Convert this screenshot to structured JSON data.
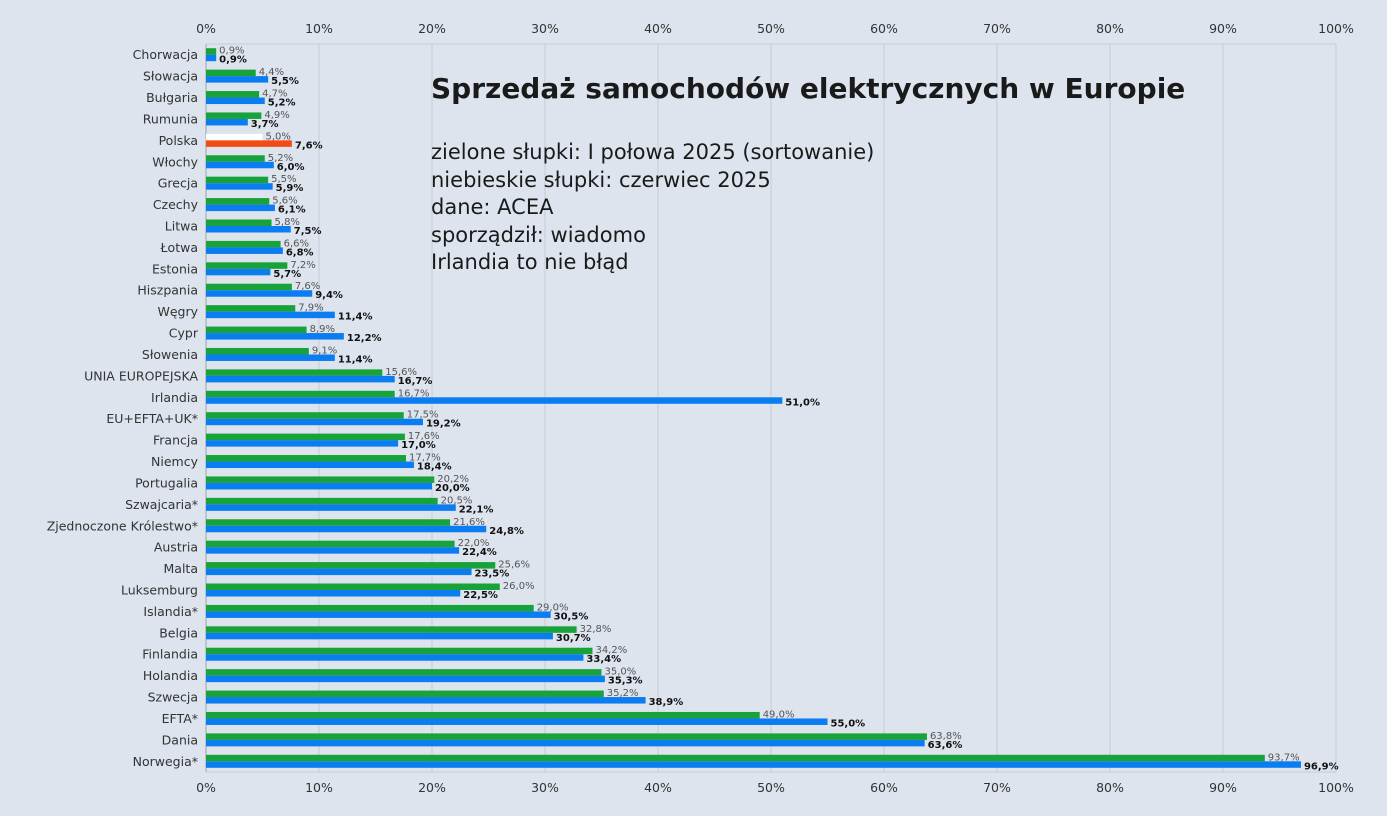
{
  "chart_data": {
    "type": "bar",
    "orientation": "horizontal",
    "title": "Sprzedaż samochodów elektrycznych w Europie",
    "notes": [
      "zielone słupki: I połowa 2025 (sortowanie)",
      "niebieskie słupki: czerwiec 2025",
      "dane: ACEA",
      "sporządził: wiadomo",
      "Irlandia to nie błąd"
    ],
    "xlim": [
      0,
      100
    ],
    "xticks": [
      "0%",
      "10%",
      "20%",
      "30%",
      "40%",
      "50%",
      "60%",
      "70%",
      "80%",
      "90%",
      "100%"
    ],
    "grid": true,
    "categories": [
      "Chorwacja",
      "Słowacja",
      "Bułgaria",
      "Rumunia",
      "Polska",
      "Włochy",
      "Grecja",
      "Czechy",
      "Litwa",
      "Łotwa",
      "Estonia",
      "Hiszpania",
      "Węgry",
      "Cypr",
      "Słowenia",
      "UNIA EUROPEJSKA",
      "Irlandia",
      "EU+EFTA+UK*",
      "Francja",
      "Niemcy",
      "Portugalia",
      "Szwajcaria*",
      "Zjednoczone Królestwo*",
      "Austria",
      "Malta",
      "Luksemburg",
      "Islandia*",
      "Belgia",
      "Finlandia",
      "Holandia",
      "Szwecja",
      "EFTA*",
      "Dania",
      "Norwegia*"
    ],
    "series": [
      {
        "color": "#18a23a",
        "highlight_color": "#ffffff",
        "values": [
          0.9,
          4.4,
          4.7,
          4.9,
          5.0,
          5.2,
          5.5,
          5.6,
          5.8,
          6.6,
          7.2,
          7.6,
          7.9,
          8.9,
          9.1,
          15.6,
          16.7,
          17.5,
          17.6,
          17.7,
          20.2,
          20.5,
          21.6,
          22.0,
          25.6,
          26.0,
          29.0,
          32.8,
          34.2,
          35.0,
          35.2,
          49.0,
          63.8,
          93.7
        ],
        "labels": [
          "0,9%",
          "4,4%",
          "4,7%",
          "4,9%",
          "5,0%",
          "5,2%",
          "5,5%",
          "5,6%",
          "5,8%",
          "6,6%",
          "7,2%",
          "7,6%",
          "7,9%",
          "8,9%",
          "9,1%",
          "15,6%",
          "16,7%",
          "17,5%",
          "17,6%",
          "17,7%",
          "20,2%",
          "20,5%",
          "21,6%",
          "22,0%",
          "25,6%",
          "26,0%",
          "29,0%",
          "32,8%",
          "34,2%",
          "35,0%",
          "35,2%",
          "49,0%",
          "63,8%",
          "93,7%"
        ]
      },
      {
        "color": "#0a7df0",
        "highlight_color": "#f24b14",
        "values": [
          0.9,
          5.5,
          5.2,
          3.7,
          7.6,
          6.0,
          5.9,
          6.1,
          7.5,
          6.8,
          5.7,
          9.4,
          11.4,
          12.2,
          11.4,
          16.7,
          51.0,
          19.2,
          17.0,
          18.4,
          20.0,
          22.1,
          24.8,
          22.4,
          23.5,
          22.5,
          30.5,
          30.7,
          33.4,
          35.3,
          38.9,
          55.0,
          63.6,
          96.9
        ],
        "labels": [
          "0,9%",
          "5,5%",
          "5,2%",
          "3,7%",
          "7,6%",
          "6,0%",
          "5,9%",
          "6,1%",
          "7,5%",
          "6,8%",
          "5,7%",
          "9,4%",
          "11,4%",
          "12,2%",
          "11,4%",
          "16,7%",
          "51,0%",
          "19,2%",
          "17,0%",
          "18,4%",
          "20,0%",
          "22,1%",
          "24,8%",
          "22,4%",
          "23,5%",
          "22,5%",
          "30,5%",
          "30,7%",
          "33,4%",
          "35,3%",
          "38,9%",
          "55,0%",
          "63,6%",
          "96,9%"
        ]
      }
    ],
    "highlight_category": "Polska"
  }
}
